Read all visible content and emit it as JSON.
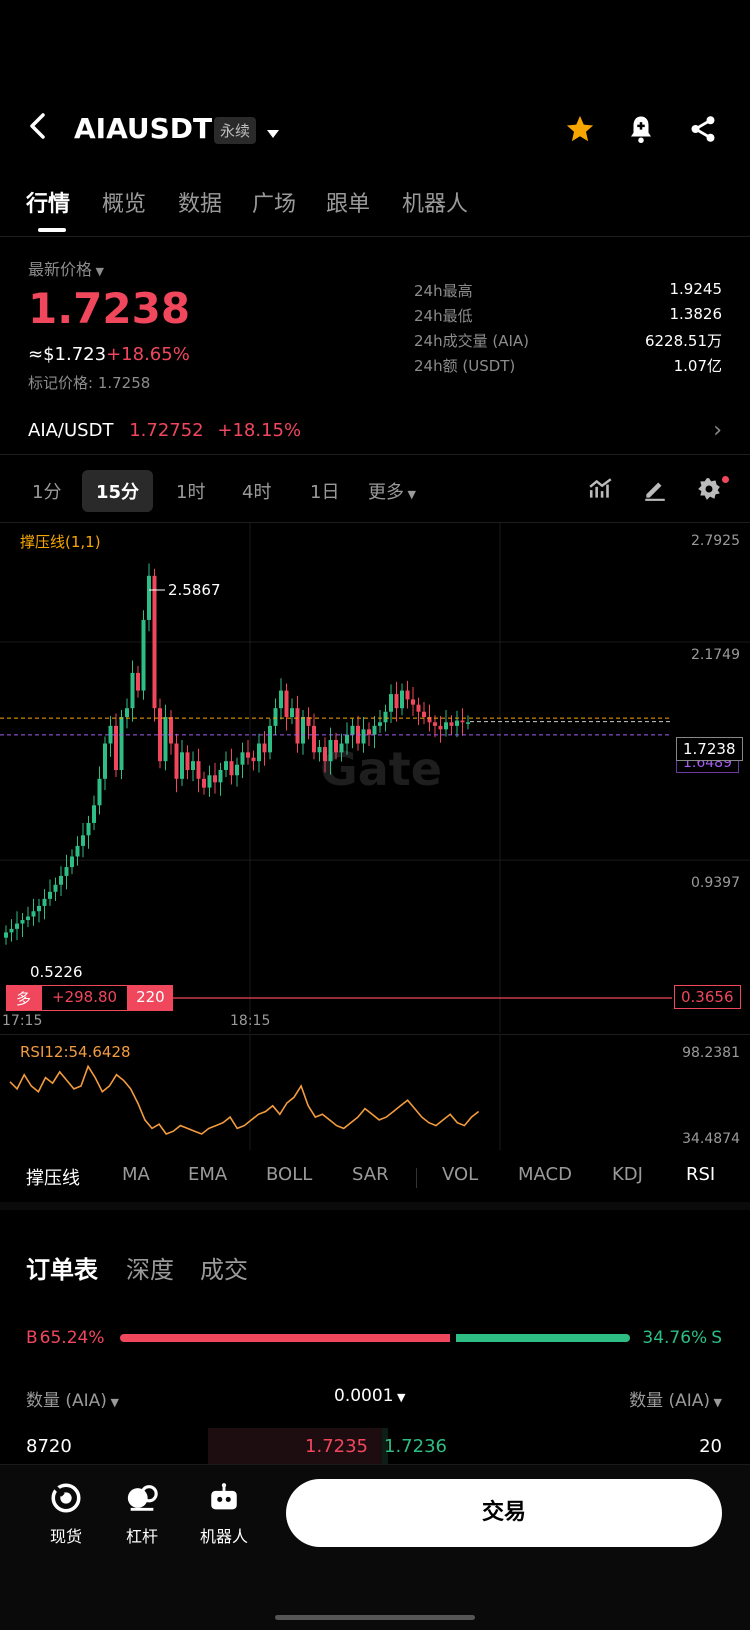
{
  "header": {
    "pair": "AIAUSDT",
    "badge": "永续"
  },
  "tabs": [
    "行情",
    "概览",
    "数据",
    "广场",
    "跟单",
    "机器人"
  ],
  "price_panel": {
    "label": "最新价格",
    "last_price": "1.7238",
    "usd_price": "≈$1.723",
    "change": "+18.65%",
    "mark_price": "标记价格: 1.7258",
    "stats": [
      {
        "label": "24h最高",
        "value": "1.9245"
      },
      {
        "label": "24h最低",
        "value": "1.3826"
      },
      {
        "label": "24h成交量 (AIA)",
        "value": "6228.51万"
      },
      {
        "label": "24h额 (USDT)",
        "value": "1.07亿"
      }
    ]
  },
  "spot": {
    "pair": "AIA/USDT",
    "price": "1.72752",
    "change": "+18.15%"
  },
  "timeframes": [
    "1分",
    "15分",
    "1时",
    "4时",
    "1日",
    "更多"
  ],
  "active_timeframe": 1,
  "chart_data": {
    "type": "candlestick",
    "indicator_label": "撑压线(1,1)",
    "y_labels": [
      "2.7925",
      "2.1749",
      "0.9397"
    ],
    "ylim": [
      0.3,
      2.7925
    ],
    "high_label": "2.5867",
    "low_label": "0.5226",
    "current_price": "1.7238",
    "mark_line": "1.6489",
    "position": {
      "side": "多",
      "pnl": "+298.80",
      "qty": "220",
      "liq_price": "0.3656"
    },
    "x_labels": [
      "17:15",
      "18:15"
    ],
    "watermark": "Gate",
    "closes": [
      0.53,
      0.55,
      0.58,
      0.6,
      0.62,
      0.65,
      0.68,
      0.72,
      0.76,
      0.8,
      0.85,
      0.9,
      0.96,
      1.02,
      1.08,
      1.15,
      1.25,
      1.4,
      1.6,
      1.7,
      1.45,
      1.75,
      1.8,
      2.0,
      1.9,
      2.3,
      2.55,
      1.8,
      1.5,
      1.75,
      1.6,
      1.4,
      1.55,
      1.45,
      1.5,
      1.4,
      1.35,
      1.42,
      1.38,
      1.45,
      1.5,
      1.42,
      1.48,
      1.55,
      1.52,
      1.5,
      1.6,
      1.55,
      1.7,
      1.8,
      1.9,
      1.75,
      1.8,
      1.6,
      1.75,
      1.7,
      1.55,
      1.58,
      1.5,
      1.62,
      1.55,
      1.6,
      1.65,
      1.7,
      1.6,
      1.68,
      1.65,
      1.7,
      1.72,
      1.78,
      1.88,
      1.8,
      1.9,
      1.85,
      1.82,
      1.78,
      1.75,
      1.72,
      1.7,
      1.68,
      1.72,
      1.7,
      1.73,
      1.72,
      1.72
    ]
  },
  "rsi": {
    "label": "RSI12:54.6428",
    "max": "98.2381",
    "min": "34.4874",
    "values": [
      75,
      70,
      80,
      72,
      68,
      78,
      74,
      82,
      76,
      70,
      72,
      86,
      78,
      68,
      72,
      80,
      76,
      70,
      60,
      48,
      42,
      45,
      38,
      40,
      44,
      42,
      40,
      38,
      42,
      44,
      46,
      50,
      42,
      44,
      48,
      52,
      54,
      58,
      52,
      60,
      64,
      72,
      58,
      50,
      52,
      48,
      44,
      42,
      46,
      50,
      56,
      52,
      48,
      50,
      54,
      58,
      62,
      56,
      50,
      46,
      44,
      48,
      52,
      46,
      44,
      50,
      54
    ]
  },
  "indicators": [
    "撑压线",
    "MA",
    "EMA",
    "BOLL",
    "SAR",
    "VOL",
    "MACD",
    "KDJ",
    "RSI"
  ],
  "orderbook": {
    "tabs": [
      "订单表",
      "深度",
      "成交"
    ],
    "buy_pct": "65.24%",
    "sell_pct": "34.76%",
    "buy_letter": "B",
    "sell_letter": "S",
    "buy_ratio": 0.6524,
    "col_left": "数量 (AIA)",
    "col_mid": "0.0001",
    "col_right": "数量 (AIA)",
    "row": {
      "bid_qty": "8720",
      "bid_price": "1.7235",
      "ask_price": "1.7236",
      "ask_qty": "20"
    }
  },
  "bottom_nav": {
    "items": [
      "现货",
      "杠杆",
      "机器人"
    ],
    "trade_button": "交易"
  },
  "colors": {
    "up": "#2ebd85",
    "down": "#f0475d",
    "accent": "#f7a600"
  }
}
